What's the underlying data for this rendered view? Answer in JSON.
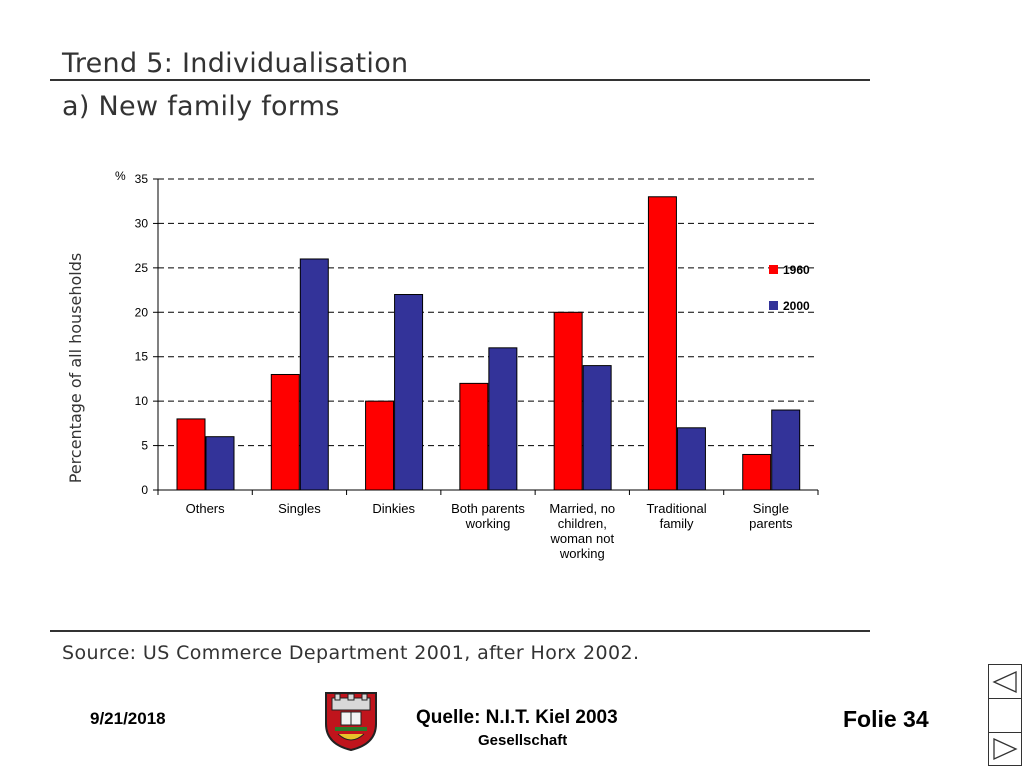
{
  "slide": {
    "title": "Trend 5: Individualisation",
    "subtitle": "a) New family forms",
    "source": "Source: US Commerce Department 2001, after Horx 2002."
  },
  "footer": {
    "date": "9/21/2018",
    "quelle": "Quelle: N.I.T. Kiel 2003",
    "society": "Gesellschaft",
    "slide_label": "Folie 34"
  },
  "chart_data": {
    "type": "bar",
    "ylabel": "Percentage of all households",
    "yunit": "%",
    "ylim": [
      0,
      35
    ],
    "yticks": [
      0,
      5,
      10,
      15,
      20,
      25,
      30,
      35
    ],
    "grid": true,
    "legend_position": "right",
    "categories": [
      [
        "Others"
      ],
      [
        "Singles"
      ],
      [
        "Dinkies"
      ],
      [
        "Both parents",
        "working"
      ],
      [
        "Married, no",
        "children,",
        "woman not",
        "working"
      ],
      [
        "Traditional",
        "family"
      ],
      [
        "Single",
        "parents"
      ]
    ],
    "series": [
      {
        "name": "1960",
        "color": "#ff0000",
        "values": [
          8,
          13,
          10,
          12,
          20,
          33,
          4
        ]
      },
      {
        "name": "2000",
        "color": "#333399",
        "values": [
          6,
          26,
          22,
          16,
          14,
          7,
          9
        ]
      }
    ]
  }
}
